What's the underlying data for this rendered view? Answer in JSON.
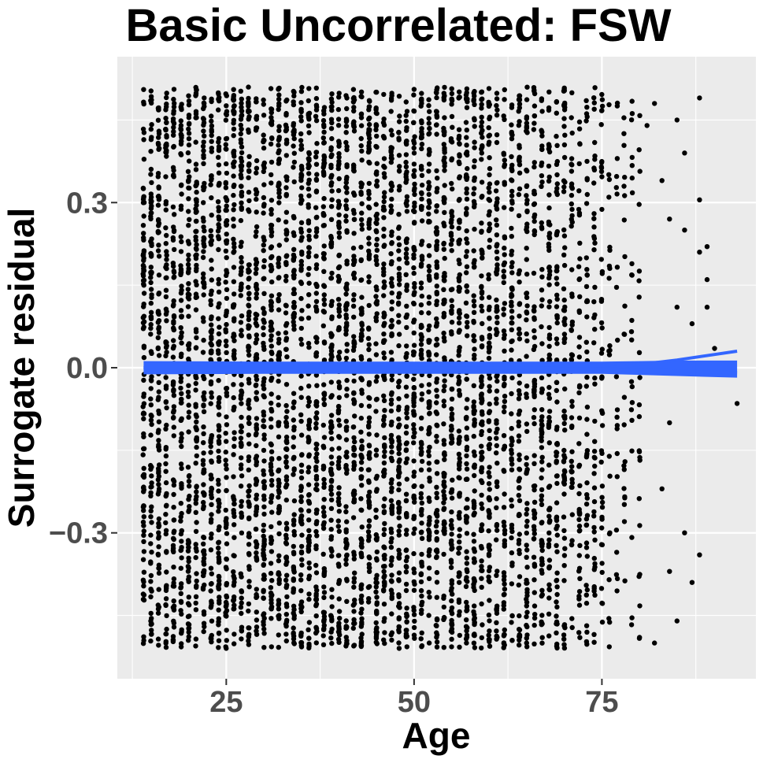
{
  "chart_data": {
    "type": "scatter",
    "title": "Basic Uncorrelated: FSW",
    "xlabel": "Age",
    "ylabel": "Surrogate residual",
    "xlim": [
      10.5,
      95.5
    ],
    "ylim": [
      -0.565,
      0.565
    ],
    "x_ticks": [
      25,
      50,
      75
    ],
    "x_tick_labels": [
      "25",
      "50",
      "75"
    ],
    "y_ticks": [
      -0.3,
      0.0,
      0.3
    ],
    "y_tick_labels": [
      "−0.3",
      "0.0",
      "0.3"
    ],
    "grid": true,
    "legend": "none",
    "points": {
      "age_min": 14,
      "age_max": 93,
      "residual_range": [
        -0.51,
        0.51
      ],
      "description_dense_until_age": 80,
      "sparse_points": [
        [
          81,
          0.44
        ],
        [
          82,
          0.48
        ],
        [
          82,
          -0.5
        ],
        [
          83,
          0.34
        ],
        [
          83,
          -0.22
        ],
        [
          84,
          0.27
        ],
        [
          84,
          -0.37
        ],
        [
          85,
          0.45
        ],
        [
          85,
          -0.46
        ],
        [
          86,
          0.39
        ],
        [
          86,
          -0.3
        ],
        [
          87,
          0.08
        ],
        [
          87,
          -0.39
        ],
        [
          88,
          0.305
        ],
        [
          88,
          0.21
        ],
        [
          88,
          -0.34
        ],
        [
          89,
          0.16
        ],
        [
          89,
          0.11
        ],
        [
          89,
          0.22
        ],
        [
          90,
          0.035
        ],
        [
          93,
          -0.065
        ],
        [
          88,
          0.49
        ],
        [
          86,
          0.25
        ],
        [
          85,
          0.11
        ],
        [
          84,
          -0.1
        ]
      ]
    },
    "smooth_lines": [
      {
        "x": [
          14,
          30,
          50,
          65,
          75,
          80,
          85,
          90,
          93
        ],
        "y": [
          0.0,
          0.0,
          0.0,
          -0.001,
          -0.002,
          0.006,
          0.014,
          0.024,
          0.03
        ]
      },
      {
        "x": [
          14,
          30,
          50,
          65,
          75,
          80,
          85,
          90,
          93
        ],
        "y": [
          0.0,
          0.0,
          0.0,
          -0.001,
          -0.002,
          -0.004,
          -0.006,
          -0.008,
          -0.009
        ]
      }
    ],
    "band": {
      "x": [
        14,
        30,
        50,
        65,
        75,
        80,
        85,
        90,
        93
      ],
      "upper": [
        0.012,
        0.011,
        0.011,
        0.011,
        0.011,
        0.012,
        0.013,
        0.013,
        0.013
      ],
      "lower": [
        -0.012,
        -0.011,
        -0.011,
        -0.011,
        -0.011,
        -0.013,
        -0.015,
        -0.017,
        -0.018
      ]
    },
    "colors": {
      "panel": "#ebebeb",
      "grid": "#ffffff",
      "points": "#000000",
      "smooth": "#3366ff"
    }
  }
}
